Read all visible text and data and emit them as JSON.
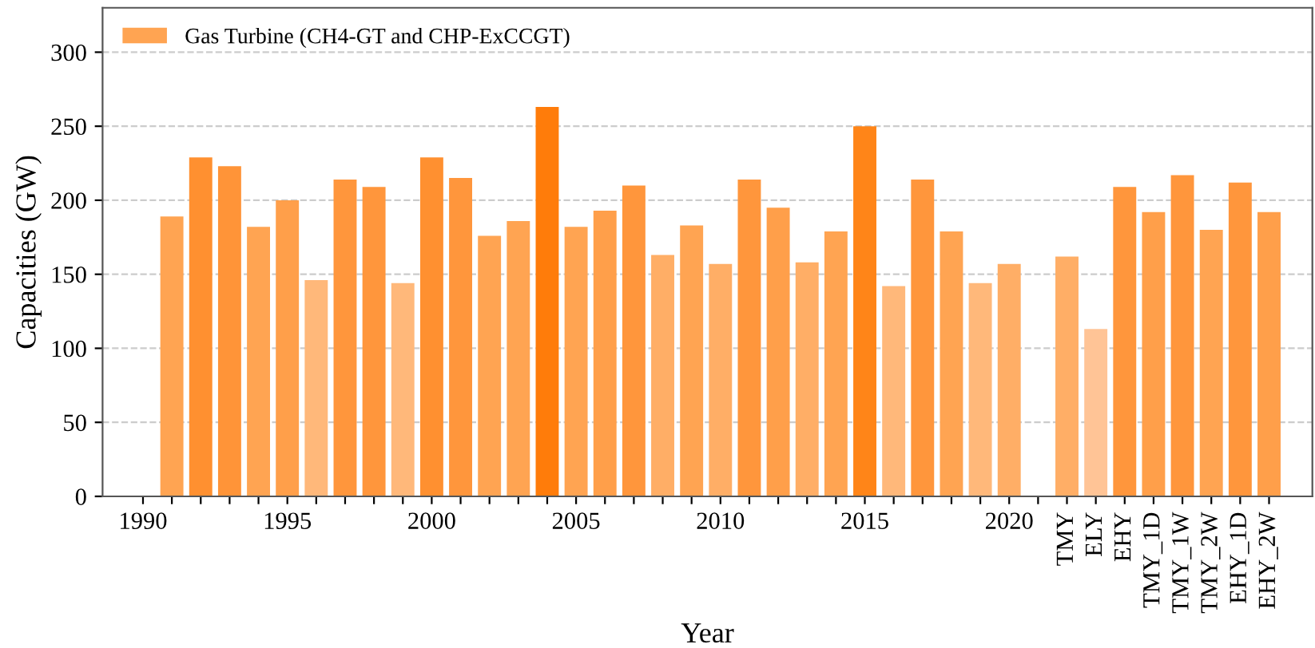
{
  "chart_data": {
    "type": "bar",
    "xlabel": "Year",
    "ylabel": "Capacities (GW)",
    "categories": [
      "1990",
      null,
      null,
      null,
      null,
      "1995",
      null,
      null,
      null,
      null,
      "2000",
      null,
      null,
      null,
      null,
      "2005",
      null,
      null,
      null,
      null,
      "2010",
      null,
      null,
      null,
      null,
      "2015",
      null,
      null,
      null,
      null,
      "2020",
      null,
      "TMY",
      "ELY",
      "EHY",
      "TMY_1D",
      "TMY_1W",
      "TMY_2W",
      "EHY_1D",
      "EHY_2W"
    ],
    "series": [
      {
        "name": "Gas Turbine (CH4-GT and CHP-ExCCGT)",
        "color": "#ffa452",
        "values": [
          null,
          189,
          229,
          223,
          182,
          200,
          146,
          214,
          209,
          144,
          229,
          215,
          176,
          186,
          263,
          182,
          193,
          210,
          163,
          183,
          157,
          214,
          195,
          158,
          179,
          250,
          142,
          214,
          179,
          144,
          157,
          null,
          162,
          113,
          209,
          192,
          217,
          180,
          212,
          192
        ],
        "colors": [
          null,
          "#ffa452",
          "#ff9030",
          "#ff9438",
          "#ffa452",
          "#ff9f4a",
          "#ffb87a",
          "#ff963c",
          "#ff963c",
          "#ffb87a",
          "#ff9030",
          "#ff963c",
          "#ffa452",
          "#ffa452",
          "#ff7c0a",
          "#ffa452",
          "#ff9f4a",
          "#ff963c",
          "#ffae66",
          "#ffa452",
          "#ffae66",
          "#ff963c",
          "#ff9f4a",
          "#ffae66",
          "#ffa452",
          "#ff8518",
          "#ffb87a",
          "#ff963c",
          "#ffa452",
          "#ffb87a",
          "#ffae66",
          null,
          "#ffae66",
          "#ffc496",
          "#ff963c",
          "#ff9f4a",
          "#ff963c",
          "#ffa452",
          "#ff963c",
          "#ff9f4a"
        ]
      }
    ],
    "ylim": [
      0,
      330
    ],
    "yticks": [
      0,
      50,
      100,
      150,
      200,
      250,
      300
    ],
    "grid": "y",
    "legend": "top left"
  }
}
